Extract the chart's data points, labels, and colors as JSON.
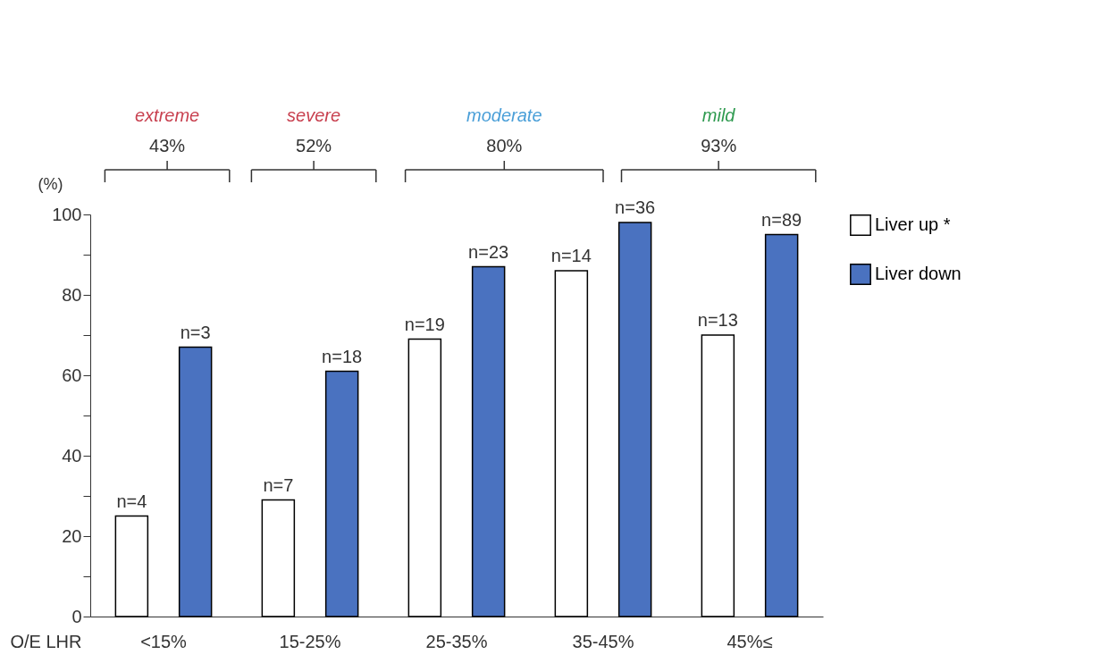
{
  "chart_data": {
    "type": "bar",
    "xlabel": "O/E LHR",
    "ylabel": "(%)",
    "categories": [
      "<15%",
      "15-25%",
      "25-35%",
      "35-45%",
      "45%≤"
    ],
    "series": [
      {
        "name": "Liver up *",
        "color": "#ffffff",
        "values": [
          25,
          29,
          69,
          86,
          70
        ]
      },
      {
        "name": "Liver down",
        "color": "#4a72c0",
        "values": [
          67,
          61,
          87,
          98,
          95
        ]
      }
    ],
    "ylim": [
      0,
      100
    ],
    "yticks": [
      0,
      {
        "value": 10,
        "label": null
      },
      20,
      {
        "value": 30,
        "label": null
      },
      40,
      {
        "value": 50,
        "label": null
      },
      60,
      {
        "value": 70,
        "label": null
      },
      80,
      {
        "value": 90,
        "label": null
      },
      100
    ],
    "annotations": [
      "extreme",
      "43%",
      "severe",
      "52%",
      "moderate",
      "80%",
      "mild",
      "93%",
      "n=4",
      "n=3",
      "n=7",
      "n=18",
      "n=19",
      "n=23",
      "n=14",
      "n=36",
      "n=13",
      "n=89"
    ],
    "grid": false,
    "legend": "right"
  }
}
